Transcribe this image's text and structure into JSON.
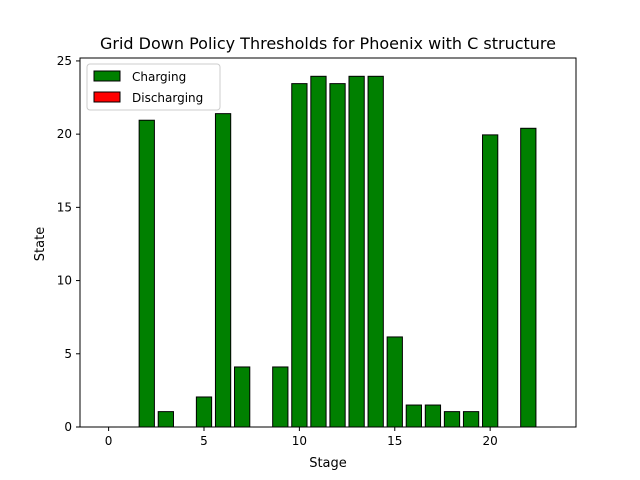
{
  "chart_data": {
    "type": "bar",
    "title": "Grid Down Policy Thresholds for Phoenix with C structure",
    "xlabel": "Stage",
    "ylabel": "State",
    "xlim": [
      -1.5,
      24.5
    ],
    "ylim": [
      0,
      25.2
    ],
    "xticks": [
      0,
      5,
      10,
      15,
      20
    ],
    "yticks": [
      0,
      5,
      10,
      15,
      20,
      25
    ],
    "legend_position": "top-left",
    "series": [
      {
        "name": "Charging",
        "color": "#008000",
        "x": [
          0,
          1,
          2,
          3,
          4,
          5,
          6,
          7,
          8,
          9,
          10,
          11,
          12,
          13,
          14,
          15,
          16,
          17,
          18,
          19,
          20,
          21,
          22,
          23
        ],
        "values": [
          0,
          0,
          20.95,
          1.05,
          0,
          2.05,
          21.4,
          4.1,
          0,
          4.1,
          23.45,
          23.95,
          23.45,
          23.95,
          23.95,
          6.15,
          1.5,
          1.5,
          1.05,
          1.05,
          19.95,
          0,
          20.4,
          0
        ]
      },
      {
        "name": "Discharging",
        "color": "#ff0000",
        "x": [],
        "values": []
      }
    ]
  }
}
